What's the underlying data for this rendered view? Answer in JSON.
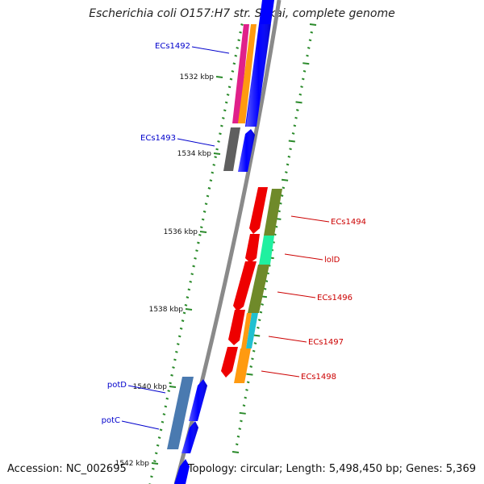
{
  "title": "Escherichia coli O157:H7 str. Sakai, complete genome",
  "accession": "Accession: NC_002695",
  "topology": "Topology: circular; Length: 5,498,450 bp; Genes: 5,369",
  "kbp_labels": [
    "1532 kbp",
    "1534 kbp",
    "1536 kbp",
    "1538 kbp",
    "1540 kbp",
    "1542 kbp"
  ],
  "left_genes": [
    {
      "name": "ECs1492",
      "color": "#0000cc"
    },
    {
      "name": "ECs1493",
      "color": "#0000cc"
    },
    {
      "name": "potD",
      "color": "#0000cc"
    },
    {
      "name": "potC",
      "color": "#0000cc"
    }
  ],
  "right_genes": [
    {
      "name": "ECs1494",
      "color": "#cc0000"
    },
    {
      "name": "lolD",
      "color": "#cc0000"
    },
    {
      "name": "ECs1496",
      "color": "#cc0000"
    },
    {
      "name": "ECs1497",
      "color": "#cc0000"
    },
    {
      "name": "ECs1498",
      "color": "#cc0000"
    }
  ],
  "colors": {
    "backbone": "#8a8a8a",
    "forward_strand": "#0000ff",
    "reverse_strand": "#ee0000",
    "tick": "#2a8a2a",
    "cog_magenta": "#e0208a",
    "cog_orange": "#ff9a10",
    "cog_gray": "#5f5f5f",
    "cog_olive": "#6f8a2a",
    "cog_mint": "#20f0a0",
    "cog_cyan": "#20c0d0",
    "cog_steel": "#4a7ab0"
  }
}
